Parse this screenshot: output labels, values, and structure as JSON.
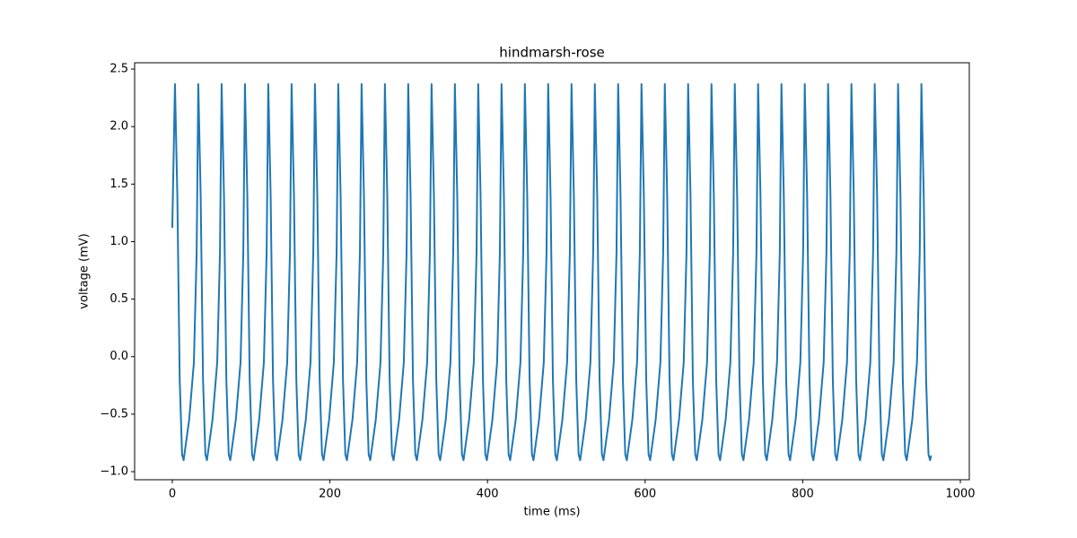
{
  "chart_data": {
    "type": "line",
    "title": "hindmarsh-rose",
    "x_label": "time (ms)",
    "y_label": "voltage (mV)",
    "color": "#1f77b4",
    "grid": false,
    "xlim": [
      -47.8,
      1011.4
    ],
    "ylim": [
      -1.07,
      2.555
    ],
    "xticks": [
      0,
      200,
      400,
      600,
      800,
      1000
    ],
    "yticks": [
      {
        "value": -1.0,
        "label": "−1.0"
      },
      {
        "value": -0.5,
        "label": "−0.5"
      },
      {
        "value": 0,
        "label": "0.0"
      },
      0.5,
      {
        "value": 1,
        "label": "1.0"
      },
      1.5,
      {
        "value": 2,
        "label": "2.0"
      },
      2.5
    ],
    "x": [
      0,
      3.4,
      6.4,
      9.4,
      12.4,
      14.4,
      21.4,
      27.4,
      30.9,
      33,
      36,
      39,
      42,
      44,
      51,
      57,
      60.5,
      62.6,
      65.6,
      68.6,
      71.6,
      73.6,
      80.6,
      86.6,
      90.1,
      92.2,
      95.2,
      98.2,
      101.2,
      103.2,
      110.2,
      116.2,
      119.7,
      121.8,
      124.8,
      127.8,
      130.8,
      132.8,
      139.8,
      145.8,
      149.3,
      151.4,
      154.4,
      157.4,
      160.4,
      162.4,
      169.4,
      175.4,
      178.9,
      181,
      184,
      187,
      190,
      192,
      199,
      205,
      208.5,
      210.6,
      213.6,
      216.6,
      219.6,
      221.6,
      228.6,
      234.6,
      238.1,
      240.2,
      243.2,
      246.2,
      249.2,
      251.2,
      258.2,
      264.2,
      267.7,
      269.8,
      272.8,
      275.8,
      278.8,
      280.8,
      287.8,
      293.8,
      297.3,
      299.4,
      302.4,
      305.4,
      308.4,
      310.4,
      317.4,
      323.4,
      326.9,
      329,
      332,
      335,
      338,
      340,
      347,
      353,
      356.5,
      358.6,
      361.6,
      364.6,
      367.6,
      369.6,
      376.6,
      382.6,
      386.1,
      388.2,
      391.2,
      394.2,
      397.2,
      399.2,
      406.2,
      412.2,
      415.7,
      417.8,
      420.8,
      423.8,
      426.8,
      428.8,
      435.8,
      441.8,
      445.3,
      447.4,
      450.4,
      453.4,
      456.4,
      458.4,
      465.4,
      471.4,
      474.9,
      477,
      480,
      483,
      486,
      488,
      495,
      501,
      504.5,
      506.6,
      509.6,
      512.6,
      515.6,
      517.6,
      524.6,
      530.6,
      534.1,
      536.2,
      539.2,
      542.2,
      545.2,
      547.2,
      554.2,
      560.2,
      563.7,
      565.8,
      568.8,
      571.8,
      574.8,
      576.8,
      583.8,
      589.8,
      593.3,
      595.4,
      598.4,
      601.4,
      604.4,
      606.4,
      613.4,
      619.4,
      622.9,
      625,
      628,
      631,
      634,
      636,
      643,
      649,
      652.5,
      654.6,
      657.6,
      660.6,
      663.6,
      665.6,
      672.6,
      678.6,
      682.1,
      684.2,
      687.2,
      690.2,
      693.2,
      695.2,
      702.2,
      708.2,
      711.7,
      713.8,
      716.8,
      719.8,
      722.8,
      724.8,
      731.8,
      737.8,
      741.3,
      743.4,
      746.4,
      749.4,
      752.4,
      754.4,
      761.4,
      767.4,
      770.9,
      773,
      776,
      779,
      782,
      784,
      791,
      797,
      800.5,
      802.6,
      805.6,
      808.6,
      811.6,
      813.6,
      820.6,
      826.6,
      830.1,
      832.2,
      835.2,
      838.2,
      841.2,
      843.2,
      850.2,
      856.2,
      859.7,
      861.8,
      864.8,
      867.8,
      870.8,
      872.8,
      879.8,
      885.8,
      889.3,
      891.4,
      894.4,
      897.4,
      900.4,
      902.4,
      909.4,
      915.4,
      918.9,
      921,
      924,
      927,
      930,
      932,
      939,
      945,
      948.5,
      950.6,
      953.6,
      956.6,
      959.6,
      961.6,
      963
    ],
    "values": [
      1.12,
      2.37,
      1.4,
      -0.2,
      -0.85,
      -0.9,
      -0.55,
      -0.05,
      0.9,
      2.37,
      1.4,
      -0.2,
      -0.85,
      -0.9,
      -0.55,
      -0.05,
      0.9,
      2.37,
      1.4,
      -0.2,
      -0.85,
      -0.9,
      -0.55,
      -0.05,
      0.9,
      2.37,
      1.4,
      -0.2,
      -0.85,
      -0.9,
      -0.55,
      -0.05,
      0.9,
      2.37,
      1.4,
      -0.2,
      -0.85,
      -0.9,
      -0.55,
      -0.05,
      0.9,
      2.37,
      1.4,
      -0.2,
      -0.85,
      -0.9,
      -0.55,
      -0.05,
      0.9,
      2.37,
      1.4,
      -0.2,
      -0.85,
      -0.9,
      -0.55,
      -0.05,
      0.9,
      2.37,
      1.4,
      -0.2,
      -0.85,
      -0.9,
      -0.55,
      -0.05,
      0.9,
      2.37,
      1.4,
      -0.2,
      -0.85,
      -0.9,
      -0.55,
      -0.05,
      0.9,
      2.37,
      1.4,
      -0.2,
      -0.85,
      -0.9,
      -0.55,
      -0.05,
      0.9,
      2.37,
      1.4,
      -0.2,
      -0.85,
      -0.9,
      -0.55,
      -0.05,
      0.9,
      2.37,
      1.4,
      -0.2,
      -0.85,
      -0.9,
      -0.55,
      -0.05,
      0.9,
      2.37,
      1.4,
      -0.2,
      -0.85,
      -0.9,
      -0.55,
      -0.05,
      0.9,
      2.37,
      1.4,
      -0.2,
      -0.85,
      -0.9,
      -0.55,
      -0.05,
      0.9,
      2.37,
      1.4,
      -0.2,
      -0.85,
      -0.9,
      -0.55,
      -0.05,
      0.9,
      2.37,
      1.4,
      -0.2,
      -0.85,
      -0.9,
      -0.55,
      -0.05,
      0.9,
      2.37,
      1.4,
      -0.2,
      -0.85,
      -0.9,
      -0.55,
      -0.05,
      0.9,
      2.37,
      1.4,
      -0.2,
      -0.85,
      -0.9,
      -0.55,
      -0.05,
      0.9,
      2.37,
      1.4,
      -0.2,
      -0.85,
      -0.9,
      -0.55,
      -0.05,
      0.9,
      2.37,
      1.4,
      -0.2,
      -0.85,
      -0.9,
      -0.55,
      -0.05,
      0.9,
      2.37,
      1.4,
      -0.2,
      -0.85,
      -0.9,
      -0.55,
      -0.05,
      0.9,
      2.37,
      1.4,
      -0.2,
      -0.85,
      -0.9,
      -0.55,
      -0.05,
      0.9,
      2.37,
      1.4,
      -0.2,
      -0.85,
      -0.9,
      -0.55,
      -0.05,
      0.9,
      2.37,
      1.4,
      -0.2,
      -0.85,
      -0.9,
      -0.55,
      -0.05,
      0.9,
      2.37,
      1.4,
      -0.2,
      -0.85,
      -0.9,
      -0.55,
      -0.05,
      0.9,
      2.37,
      1.4,
      -0.2,
      -0.85,
      -0.9,
      -0.55,
      -0.05,
      0.9,
      2.37,
      1.4,
      -0.2,
      -0.85,
      -0.9,
      -0.55,
      -0.05,
      0.9,
      2.37,
      1.4,
      -0.2,
      -0.85,
      -0.9,
      -0.55,
      -0.05,
      0.9,
      2.37,
      1.4,
      -0.2,
      -0.85,
      -0.9,
      -0.55,
      -0.05,
      0.9,
      2.37,
      1.4,
      -0.2,
      -0.85,
      -0.9,
      -0.55,
      -0.05,
      0.9,
      2.37,
      1.4,
      -0.2,
      -0.85,
      -0.9,
      -0.55,
      -0.05,
      0.9,
      2.37,
      1.4,
      -0.2,
      -0.85,
      -0.9,
      -0.55,
      -0.05,
      0.9,
      2.37,
      1.4,
      -0.2,
      -0.85,
      -0.9,
      -0.86
    ]
  }
}
